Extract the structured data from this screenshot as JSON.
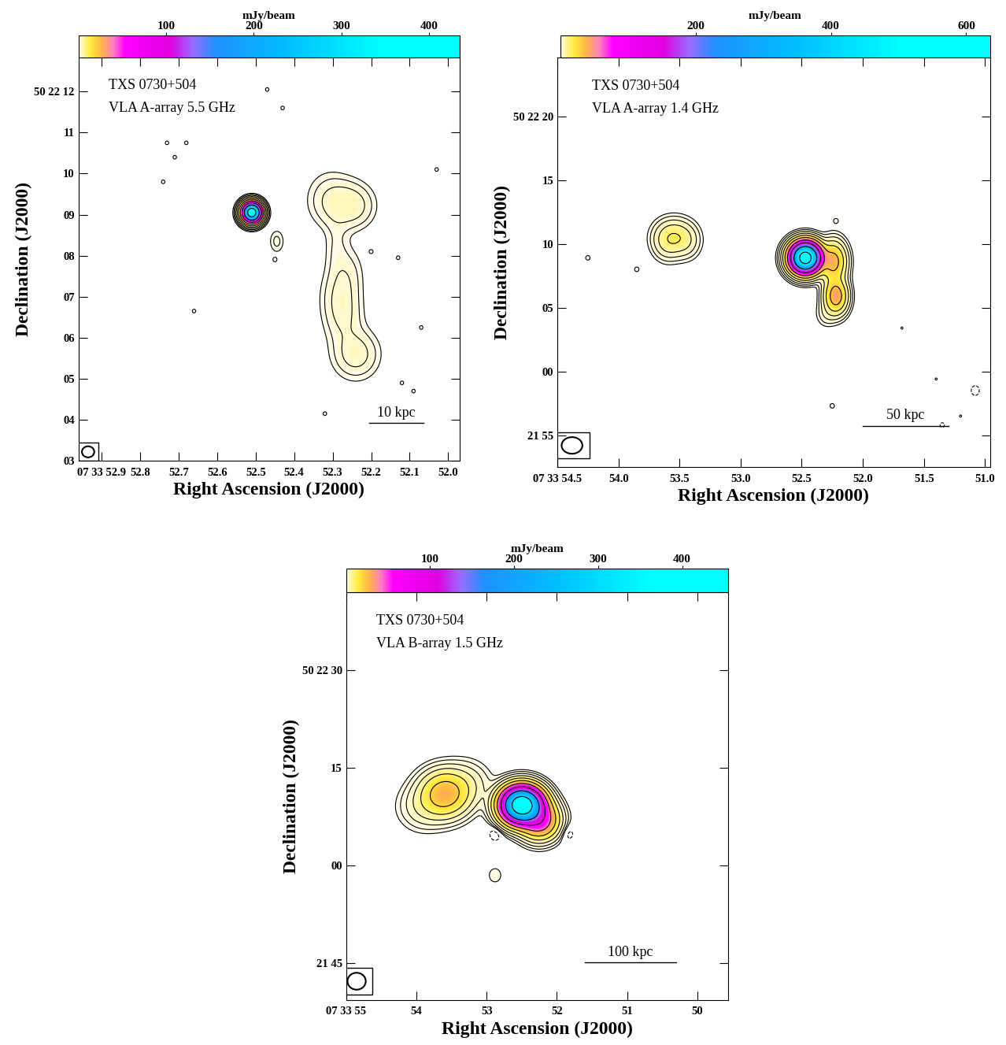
{
  "chart_data": [
    {
      "type": "contour",
      "source": "TXS 0730+504",
      "observation": "VLA A-array 5.5 GHz",
      "xlabel": "Right Ascension (J2000)",
      "ylabel": "Declination (J2000)",
      "xlim": [
        52.96,
        51.97
      ],
      "ylim": [
        3.0,
        12.83
      ],
      "xticks": [
        {
          "value": 52.9,
          "label": "07 33 52.9"
        },
        52.8,
        52.7,
        52.6,
        52.5,
        52.4,
        52.3,
        52.2,
        52.1,
        52.0
      ],
      "yticks": [
        {
          "value": 3,
          "label": "03"
        },
        {
          "value": 4,
          "label": "04"
        },
        {
          "value": 5,
          "label": "05"
        },
        {
          "value": 6,
          "label": "06"
        },
        {
          "value": 7,
          "label": "07"
        },
        {
          "value": 8,
          "label": "08"
        },
        {
          "value": 9,
          "label": "09"
        },
        10,
        11,
        {
          "value": 12,
          "label": "50 22 12"
        }
      ],
      "colorbar_label": "mJy/beam",
      "clim": [
        0,
        435
      ],
      "colorbar_ticks": [
        100,
        200,
        300,
        400
      ],
      "contour_levels": [
        -0.6,
        0.6,
        1.2,
        2.4,
        4.8,
        9.6,
        19.2,
        38.4,
        76.8,
        153.6,
        307.2
      ],
      "components": [
        {
          "ra": 52.51,
          "dec": 9.05,
          "peak": 420,
          "sigma_ra": 0.0136,
          "sigma_dec": 0.13
        },
        {
          "ra": 52.445,
          "dec": 8.35,
          "peak": 1.5,
          "sigma_ra": 0.012,
          "sigma_dec": 0.18
        },
        {
          "ra": 52.27,
          "dec": 9.25,
          "peak": 3.0,
          "sigma_ra": 0.04,
          "sigma_dec": 0.35
        },
        {
          "ra": 52.31,
          "dec": 9.4,
          "peak": 1.5,
          "sigma_ra": 0.035,
          "sigma_dec": 0.4
        },
        {
          "ra": 52.24,
          "dec": 9.2,
          "peak": 1.5,
          "sigma_ra": 0.03,
          "sigma_dec": 0.3
        },
        {
          "ra": 52.29,
          "dec": 8.2,
          "peak": 1.2,
          "sigma_ra": 0.02,
          "sigma_dec": 0.5
        },
        {
          "ra": 52.26,
          "dec": 7.6,
          "peak": 1.2,
          "sigma_ra": 0.025,
          "sigma_dec": 0.4
        },
        {
          "ra": 52.28,
          "dec": 7.0,
          "peak": 2.5,
          "sigma_ra": 0.03,
          "sigma_dec": 0.45
        },
        {
          "ra": 52.27,
          "dec": 6.4,
          "peak": 1.8,
          "sigma_ra": 0.03,
          "sigma_dec": 0.4
        },
        {
          "ra": 52.24,
          "dec": 5.6,
          "peak": 3.5,
          "sigma_ra": 0.035,
          "sigma_dec": 0.35
        },
        {
          "ra": 52.68,
          "dec": 10.75,
          "peak": 0.8,
          "sigma_ra": 0.006,
          "sigma_dec": 0.06
        },
        {
          "ra": 52.71,
          "dec": 10.4,
          "peak": 0.8,
          "sigma_ra": 0.006,
          "sigma_dec": 0.06
        },
        {
          "ra": 52.73,
          "dec": 10.75,
          "peak": 0.8,
          "sigma_ra": 0.006,
          "sigma_dec": 0.06
        },
        {
          "ra": 52.74,
          "dec": 9.8,
          "peak": 0.8,
          "sigma_ra": 0.006,
          "sigma_dec": 0.06
        },
        {
          "ra": 52.45,
          "dec": 7.9,
          "peak": 0.8,
          "sigma_ra": 0.006,
          "sigma_dec": 0.06
        },
        {
          "ra": 52.2,
          "dec": 8.1,
          "peak": 0.8,
          "sigma_ra": 0.006,
          "sigma_dec": 0.06
        },
        {
          "ra": 52.13,
          "dec": 7.95,
          "peak": 0.8,
          "sigma_ra": 0.006,
          "sigma_dec": 0.06
        },
        {
          "ra": 52.07,
          "dec": 6.25,
          "peak": 0.8,
          "sigma_ra": 0.006,
          "sigma_dec": 0.06
        },
        {
          "ra": 52.12,
          "dec": 4.9,
          "peak": 0.8,
          "sigma_ra": 0.006,
          "sigma_dec": 0.06
        },
        {
          "ra": 52.09,
          "dec": 4.7,
          "peak": 0.8,
          "sigma_ra": 0.006,
          "sigma_dec": 0.06
        },
        {
          "ra": 52.32,
          "dec": 4.15,
          "peak": 0.8,
          "sigma_ra": 0.006,
          "sigma_dec": 0.06
        },
        {
          "ra": 52.03,
          "dec": 10.1,
          "peak": 0.8,
          "sigma_ra": 0.006,
          "sigma_dec": 0.06
        },
        {
          "ra": 52.66,
          "dec": 6.65,
          "peak": 0.8,
          "sigma_ra": 0.006,
          "sigma_dec": 0.06
        },
        {
          "ra": 52.47,
          "dec": 12.05,
          "peak": 0.8,
          "sigma_ra": 0.006,
          "sigma_dec": 0.06
        },
        {
          "ra": 52.43,
          "dec": 11.6,
          "peak": 0.8,
          "sigma_ra": 0.006,
          "sigma_dec": 0.06
        }
      ],
      "beam": {
        "ra": 52.935,
        "dec": 3.22,
        "width": 0.032,
        "height": 0.27
      },
      "scale_bar": {
        "label": "10 kpc",
        "ra": [
          52.205,
          52.065
        ],
        "dec": 3.92
      }
    },
    {
      "type": "contour",
      "source": "TXS 0730+504",
      "observation": "VLA A-array 1.4 GHz",
      "xlabel": "Right Ascension (J2000)",
      "ylabel": "Declination (J2000)",
      "xlim": [
        54.5,
        50.96
      ],
      "ylim": [
        -7.5,
        24.6
      ],
      "xticks": [
        {
          "value": 54.5,
          "label": "07 33 54.5"
        },
        54.0,
        53.5,
        53.0,
        52.5,
        52.0,
        51.5,
        51.0
      ],
      "yticks": [
        {
          "value": -5,
          "label": "21 55"
        },
        {
          "value": 0,
          "label": "00"
        },
        {
          "value": 5,
          "label": "05"
        },
        10,
        15,
        {
          "value": 20,
          "label": "50 22 20"
        }
      ],
      "colorbar_label": "mJy/beam",
      "clim": [
        0,
        635
      ],
      "colorbar_ticks": [
        200,
        400,
        600
      ],
      "contour_levels": [
        -1,
        1,
        2,
        4,
        8,
        16,
        32,
        64,
        128,
        256,
        512
      ],
      "components": [
        {
          "ra": 52.47,
          "dec": 8.9,
          "peak": 650,
          "sigma_ra": 0.068,
          "sigma_dec": 0.65
        },
        {
          "ra": 52.24,
          "dec": 8.6,
          "peak": 40,
          "sigma_ra": 0.06,
          "sigma_dec": 0.9
        },
        {
          "ra": 52.22,
          "dec": 5.9,
          "peak": 45,
          "sigma_ra": 0.055,
          "sigma_dec": 0.8
        },
        {
          "ra": 52.3,
          "dec": 4.5,
          "peak": 3,
          "sigma_ra": 0.05,
          "sigma_dec": 0.6
        },
        {
          "ra": 53.55,
          "dec": 10.6,
          "peak": 12,
          "sigma_ra": 0.09,
          "sigma_dec": 0.8
        },
        {
          "ra": 53.45,
          "dec": 10.2,
          "peak": 6,
          "sigma_ra": 0.07,
          "sigma_dec": 0.8
        },
        {
          "ra": 53.6,
          "dec": 10.0,
          "peak": 6,
          "sigma_ra": 0.07,
          "sigma_dec": 0.8
        },
        {
          "ra": 54.25,
          "dec": 8.9,
          "peak": 1.5,
          "sigma_ra": 0.02,
          "sigma_dec": 0.2
        },
        {
          "ra": 53.85,
          "dec": 8.0,
          "peak": 1.5,
          "sigma_ra": 0.02,
          "sigma_dec": 0.2
        },
        {
          "ra": 52.22,
          "dec": 11.8,
          "peak": 1.5,
          "sigma_ra": 0.02,
          "sigma_dec": 0.2
        },
        {
          "ra": 52.25,
          "dec": -2.7,
          "peak": 1.5,
          "sigma_ra": 0.02,
          "sigma_dec": 0.2
        },
        {
          "ra": 51.68,
          "dec": 3.4,
          "peak": 1.2,
          "sigma_ra": 0.015,
          "sigma_dec": 0.15
        },
        {
          "ra": 51.4,
          "dec": -0.6,
          "peak": 1.2,
          "sigma_ra": 0.015,
          "sigma_dec": 0.15
        },
        {
          "ra": 51.2,
          "dec": -3.5,
          "peak": 1.2,
          "sigma_ra": 0.015,
          "sigma_dec": 0.15
        },
        {
          "ra": 51.08,
          "dec": -1.5,
          "peak": -1.8,
          "sigma_ra": 0.03,
          "sigma_dec": 0.35
        },
        {
          "ra": 51.35,
          "dec": -4.2,
          "peak": -1.5,
          "sigma_ra": 0.02,
          "sigma_dec": 0.2
        }
      ],
      "beam": {
        "ra": 54.38,
        "dec": -5.8,
        "width": 0.17,
        "height": 1.3
      },
      "scale_bar": {
        "label": "50 kpc",
        "ra": [
          52.0,
          51.3
        ],
        "dec": -4.26
      }
    },
    {
      "type": "contour",
      "source": "TXS 0730+504",
      "observation": "VLA B-array 1.5 GHz",
      "xlabel": "Right Ascension (J2000)",
      "ylabel": "Declination (J2000)",
      "xlim": [
        55.0,
        49.56
      ],
      "ylim": [
        -20.7,
        42.0
      ],
      "xticks": [
        {
          "value": 55,
          "label": "07 33 55"
        },
        54,
        53,
        52,
        51,
        50
      ],
      "yticks": [
        {
          "value": -15,
          "label": "21 45"
        },
        {
          "value": 0,
          "label": "00"
        },
        15,
        {
          "value": 30,
          "label": "50 22 30"
        }
      ],
      "colorbar_label": "mJy/beam",
      "clim": [
        0,
        455
      ],
      "colorbar_ticks": [
        100,
        200,
        300,
        400
      ],
      "contour_levels": [
        -0.6,
        0.6,
        1.2,
        2.4,
        4.8,
        9.6,
        19.2,
        38.4,
        76.8,
        153.6,
        307.2
      ],
      "components": [
        {
          "ra": 52.5,
          "dec": 9.3,
          "peak": 450,
          "sigma_ra": 0.157,
          "sigma_dec": 1.5
        },
        {
          "ra": 52.25,
          "dec": 7.0,
          "peak": 60,
          "sigma_ra": 0.15,
          "sigma_dec": 1.6
        },
        {
          "ra": 53.6,
          "dec": 11.0,
          "peak": 28,
          "sigma_ra": 0.2,
          "sigma_dec": 2.0
        },
        {
          "ra": 53.9,
          "dec": 9.0,
          "peak": 4,
          "sigma_ra": 0.2,
          "sigma_dec": 2.0
        },
        {
          "ra": 53.3,
          "dec": 12.5,
          "peak": 4,
          "sigma_ra": 0.2,
          "sigma_dec": 2.0
        },
        {
          "ra": 52.87,
          "dec": 5.0,
          "peak": -1.2,
          "sigma_ra": 0.08,
          "sigma_dec": 1.0
        },
        {
          "ra": 51.85,
          "dec": 5.0,
          "peak": -1.2,
          "sigma_ra": 0.08,
          "sigma_dec": 1.0
        },
        {
          "ra": 52.88,
          "dec": -1.5,
          "peak": 1.0,
          "sigma_ra": 0.08,
          "sigma_dec": 1.0
        }
      ],
      "beam": {
        "ra": 54.85,
        "dec": -17.8,
        "width": 0.26,
        "height": 2.6
      },
      "scale_bar": {
        "label": "100 kpc",
        "ra": [
          51.6,
          50.3
        ],
        "dec": -14.9
      }
    }
  ]
}
